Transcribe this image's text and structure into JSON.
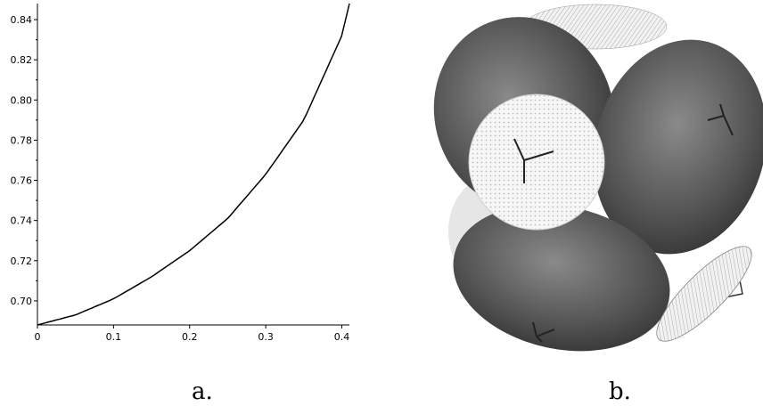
{
  "captions": {
    "left": "a.",
    "right": "b."
  },
  "chart_data": {
    "type": "line",
    "title": "",
    "xlabel": "",
    "ylabel": "",
    "xlim": [
      0,
      0.41
    ],
    "ylim": [
      0.688,
      0.848
    ],
    "xticks": [
      0,
      0.1,
      0.2,
      0.3,
      0.4
    ],
    "xtick_labels": [
      "0",
      "0.1",
      "0.2",
      "0.3",
      "0.4"
    ],
    "yticks": [
      0.7,
      0.72,
      0.74,
      0.76,
      0.78,
      0.8,
      0.82,
      0.84
    ],
    "ytick_labels": [
      "0.70",
      "0.72",
      "0.74",
      "0.76",
      "0.78",
      "0.80",
      "0.82",
      "0.84"
    ],
    "grid": false,
    "series": [
      {
        "color": "#000000",
        "x": [
          0,
          0.05,
          0.1,
          0.15,
          0.2,
          0.25,
          0.3,
          0.35,
          0.4,
          0.41
        ],
        "y": [
          0.688,
          0.693,
          0.701,
          0.712,
          0.725,
          0.741,
          0.763,
          0.79,
          0.832,
          0.848
        ]
      }
    ]
  },
  "render_colors": {
    "dark_lobe": "#5a5a5a",
    "light_lobe": "#f4f4f4",
    "edge": "#222222"
  }
}
